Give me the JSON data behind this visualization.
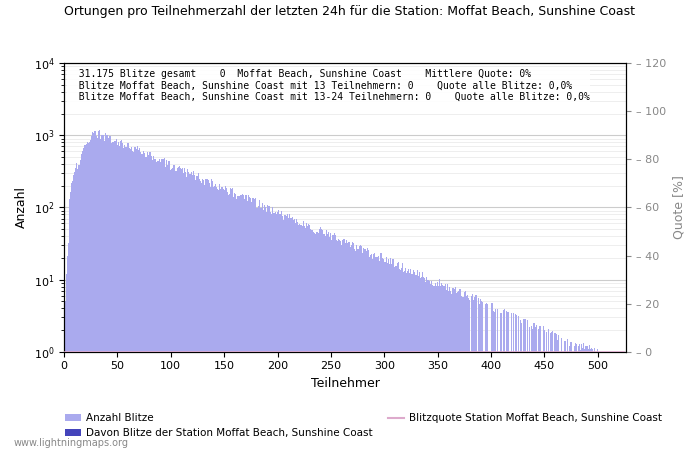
{
  "title": "Ortungen pro Teilnehmerzahl der letzten 24h für die Station: Moffat Beach, Sunshine Coast",
  "xlabel": "Teilnehmer",
  "ylabel_left": "Anzahl",
  "ylabel_right": "Quote [%]",
  "annotation_lines": [
    "  31.175 Blitze gesamt    0  Moffat Beach, Sunshine Coast    Mittlere Quote: 0%",
    "  Blitze Moffat Beach, Sunshine Coast mit 13 Teilnehmern: 0    Quote alle Blitze: 0,0%",
    "  Blitze Moffat Beach, Sunshine Coast mit 13-24 Teilnehmern: 0    Quote alle Blitze: 0,0%"
  ],
  "bar_color_light": "#aaaaee",
  "bar_color_dark": "#4444bb",
  "line_color": "#ddaacc",
  "legend_labels": [
    "Anzahl Blitze",
    "Davon Blitze der Station Moffat Beach, Sunshine Coast",
    "Blitzquote Station Moffat Beach, Sunshine Coast"
  ],
  "watermark": "www.lightningmaps.org",
  "xlim": [
    0,
    527
  ],
  "ylim_right": [
    0,
    120
  ],
  "right_yticks": [
    0,
    20,
    40,
    60,
    80,
    100,
    120
  ],
  "xticks": [
    0,
    50,
    100,
    150,
    200,
    250,
    300,
    350,
    400,
    450,
    500
  ]
}
